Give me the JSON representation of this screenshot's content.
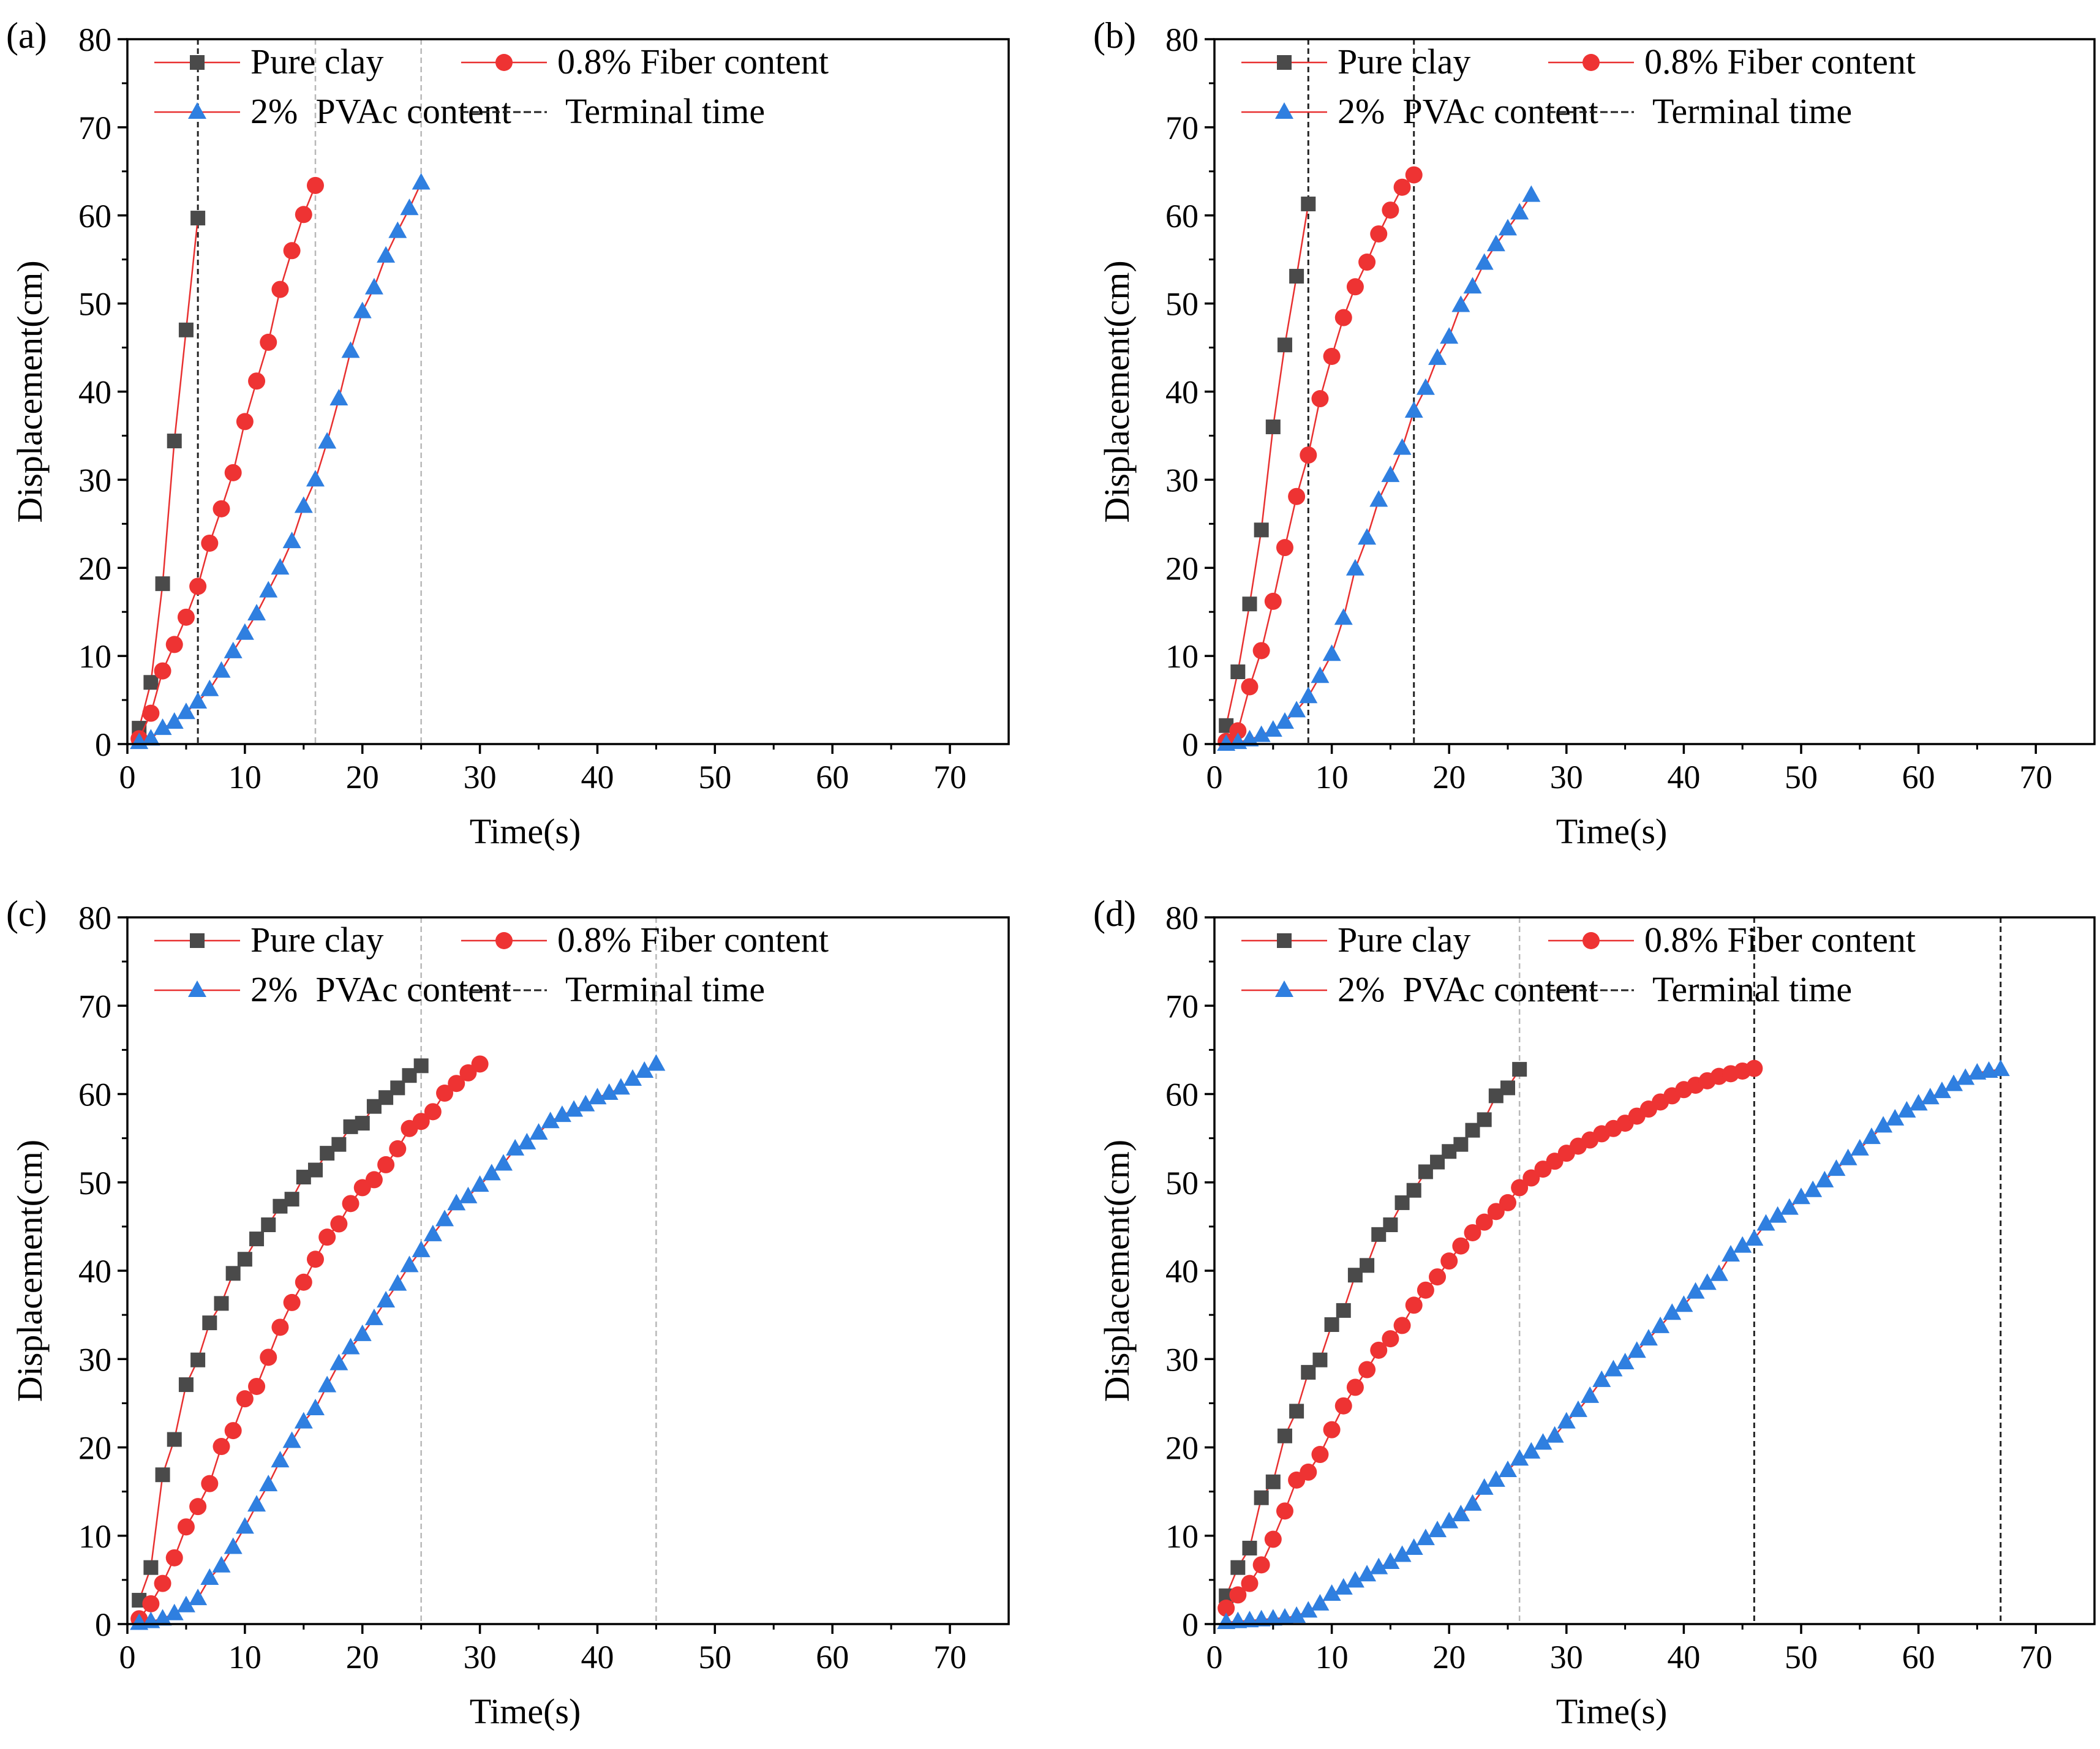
{
  "figure": {
    "colors": {
      "pure_clay": "#4a4a4a",
      "fiber": "#ee3333",
      "pvac": "#2f7fe0",
      "fit_line": "#e83030",
      "terminal_line": "#222222",
      "terminal_faint": "#b8b8b8"
    },
    "legend": {
      "pure_clay": "Pure clay",
      "fiber": "0.8% Fiber content",
      "pvac": "2%  PVAc content",
      "terminal": "Terminal time"
    }
  },
  "chart_data": [
    {
      "panel": "(a)",
      "type": "scatter",
      "xlabel": "Time(s)",
      "ylabel": "Displacement(cm)",
      "xlim": [
        0,
        75
      ],
      "ylim": [
        0,
        80
      ],
      "xticks": [
        0,
        10,
        20,
        30,
        40,
        50,
        60,
        70
      ],
      "yticks": [
        0,
        10,
        20,
        30,
        40,
        50,
        60,
        70,
        80
      ],
      "terminal_times": [
        6,
        16,
        25
      ],
      "terminal_style": [
        "dark",
        "faint",
        "faint"
      ],
      "series": [
        {
          "key": "pure_clay",
          "marker": "square",
          "x": [
            1,
            2,
            3,
            4,
            5,
            6
          ],
          "y": [
            1.8,
            7,
            18.2,
            34.4,
            47,
            59.7
          ]
        },
        {
          "key": "fiber",
          "marker": "circle",
          "x": [
            1,
            2,
            3,
            4,
            5,
            6,
            7,
            8,
            9,
            10,
            11,
            12,
            13,
            14,
            15,
            16
          ],
          "y": [
            0.6,
            3.5,
            8.3,
            11.3,
            14.4,
            17.9,
            22.8,
            26.7,
            30.8,
            36.6,
            41.2,
            45.6,
            51.6,
            56,
            60.1,
            63.4
          ]
        },
        {
          "key": "pvac",
          "marker": "triangle",
          "x": [
            1,
            2,
            3,
            4,
            5,
            6,
            7,
            8,
            9,
            10,
            11,
            12,
            13,
            14,
            15,
            16,
            17,
            18,
            19,
            20,
            21,
            22,
            23,
            24,
            25
          ],
          "y": [
            0.2,
            0.6,
            1.8,
            2.5,
            3.6,
            4.8,
            6.2,
            8.3,
            10.5,
            12.6,
            14.8,
            17.4,
            20,
            23,
            27,
            30,
            34.3,
            39.2,
            44.6,
            49.1,
            51.8,
            55.4,
            58.2,
            60.8,
            63.7
          ]
        }
      ]
    },
    {
      "panel": "(b)",
      "type": "scatter",
      "xlabel": "Time(s)",
      "ylabel": "Displacement(cm)",
      "xlim": [
        0,
        75
      ],
      "ylim": [
        0,
        80
      ],
      "xticks": [
        0,
        10,
        20,
        30,
        40,
        50,
        60,
        70
      ],
      "yticks": [
        0,
        10,
        20,
        30,
        40,
        50,
        60,
        70,
        80
      ],
      "terminal_times": [
        8,
        17
      ],
      "terminal_style": [
        "dark",
        "dark"
      ],
      "series": [
        {
          "key": "pure_clay",
          "marker": "square",
          "x": [
            1,
            2,
            3,
            4,
            5,
            6,
            7,
            8
          ],
          "y": [
            2.1,
            8.2,
            15.9,
            24.3,
            36,
            45.3,
            53.1,
            61.3
          ]
        },
        {
          "key": "fiber",
          "marker": "circle",
          "x": [
            1,
            2,
            3,
            4,
            5,
            6,
            7,
            8,
            9,
            10,
            11,
            12,
            13,
            14,
            15,
            16,
            17
          ],
          "y": [
            0.3,
            1.5,
            6.5,
            10.6,
            16.2,
            22.3,
            28.1,
            32.8,
            39.2,
            44,
            48.4,
            51.9,
            54.7,
            57.9,
            60.6,
            63.2,
            64.6
          ]
        },
        {
          "key": "pvac",
          "marker": "triangle",
          "x": [
            1,
            2,
            3,
            4,
            5,
            6,
            7,
            8,
            9,
            10,
            11,
            12,
            13,
            14,
            15,
            16,
            17,
            18,
            19,
            20,
            21,
            22,
            23,
            24,
            25,
            26,
            27
          ],
          "y": [
            0,
            0.2,
            0.5,
            1,
            1.6,
            2.5,
            3.8,
            5.4,
            7.7,
            10.2,
            14.3,
            19.9,
            23.4,
            27.7,
            30.5,
            33.6,
            37.8,
            40.4,
            43.8,
            46.2,
            49.8,
            51.9,
            54.6,
            56.7,
            58.5,
            60.3,
            62.3
          ]
        }
      ]
    },
    {
      "panel": "(c)",
      "type": "scatter",
      "xlabel": "Time(s)",
      "ylabel": "Displacement(cm)",
      "xlim": [
        0,
        75
      ],
      "ylim": [
        0,
        80
      ],
      "xticks": [
        0,
        10,
        20,
        30,
        40,
        50,
        60,
        70
      ],
      "yticks": [
        0,
        10,
        20,
        30,
        40,
        50,
        60,
        70,
        80
      ],
      "terminal_times": [
        25,
        45
      ],
      "terminal_style": [
        "faint",
        "faint"
      ],
      "series": [
        {
          "key": "pure_clay",
          "marker": "square",
          "x": [
            1,
            2,
            3,
            4,
            5,
            6,
            7,
            8,
            9,
            10,
            11,
            12,
            13,
            14,
            15,
            16,
            17,
            18,
            19,
            20,
            21,
            22,
            23,
            24,
            25
          ],
          "y": [
            2.7,
            6.4,
            16.9,
            20.9,
            27.1,
            29.9,
            34.1,
            36.3,
            39.7,
            41.3,
            43.6,
            45.2,
            47.3,
            48.1,
            50.6,
            51.4,
            53.3,
            54.3,
            56.3,
            56.7,
            58.6,
            59.6,
            60.7,
            62.1,
            63.2
          ]
        },
        {
          "key": "fiber",
          "marker": "circle",
          "x": [
            1,
            2,
            3,
            4,
            5,
            6,
            7,
            8,
            9,
            10,
            11,
            12,
            13,
            14,
            15,
            16,
            17,
            18,
            19,
            20,
            21,
            22,
            23,
            24,
            25,
            26,
            27,
            28,
            29,
            30
          ],
          "y": [
            0.6,
            2.3,
            4.6,
            7.5,
            11,
            13.3,
            15.9,
            20.1,
            21.9,
            25.5,
            26.9,
            30.2,
            33.6,
            36.4,
            38.7,
            41.3,
            43.8,
            45.3,
            47.6,
            49.4,
            50.3,
            52,
            53.8,
            56.1,
            56.9,
            58,
            60.1,
            61.2,
            62.4,
            63.4
          ]
        },
        {
          "key": "pvac",
          "marker": "triangle",
          "x": [
            1,
            2,
            3,
            4,
            5,
            6,
            7,
            8,
            9,
            10,
            11,
            12,
            13,
            14,
            15,
            16,
            17,
            18,
            19,
            20,
            21,
            22,
            23,
            24,
            25,
            26,
            27,
            28,
            29,
            30,
            31,
            32,
            33,
            34,
            35,
            36,
            37,
            38,
            39,
            40,
            41,
            42,
            43,
            44,
            45
          ],
          "y": [
            0.1,
            0.3,
            0.6,
            1.2,
            2.1,
            2.9,
            5.2,
            6.6,
            8.7,
            11,
            13.5,
            15.8,
            18.5,
            20.7,
            22.9,
            24.4,
            27,
            29.5,
            31.3,
            32.8,
            34.6,
            36.6,
            38.5,
            40.6,
            42.3,
            44.1,
            45.8,
            47.6,
            48.4,
            49.7,
            51,
            52.1,
            53.8,
            54.5,
            55.6,
            56.9,
            57.6,
            58.2,
            58.8,
            59.6,
            60.1,
            60.7,
            61.7,
            62.6,
            63.4
          ]
        }
      ]
    },
    {
      "panel": "(d)",
      "type": "scatter",
      "xlabel": "Time(s)",
      "ylabel": "Displacement(cm)",
      "xlim": [
        0,
        75
      ],
      "ylim": [
        0,
        80
      ],
      "xticks": [
        0,
        10,
        20,
        30,
        40,
        50,
        60,
        70
      ],
      "yticks": [
        0,
        10,
        20,
        30,
        40,
        50,
        60,
        70,
        80
      ],
      "terminal_times": [
        26,
        46,
        67
      ],
      "terminal_style": [
        "faint",
        "dark",
        "dark"
      ],
      "series": [
        {
          "key": "pure_clay",
          "marker": "square",
          "x": [
            1,
            2,
            3,
            4,
            5,
            6,
            7,
            8,
            9,
            10,
            11,
            12,
            13,
            14,
            15,
            16,
            17,
            18,
            19,
            20,
            21,
            22,
            23,
            24,
            25,
            26
          ],
          "y": [
            3.2,
            6.4,
            8.6,
            14.3,
            16.1,
            21.3,
            24.1,
            28.5,
            29.9,
            33.9,
            35.5,
            39.5,
            40.6,
            44.1,
            45.2,
            47.7,
            49.1,
            51.2,
            52.3,
            53.5,
            54.3,
            55.9,
            57.1,
            59.8,
            60.7,
            62.8
          ]
        },
        {
          "key": "fiber",
          "marker": "circle",
          "x": [
            1,
            2,
            3,
            4,
            5,
            6,
            7,
            8,
            9,
            10,
            11,
            12,
            13,
            14,
            15,
            16,
            17,
            18,
            19,
            20,
            21,
            22,
            23,
            24,
            25,
            26,
            27,
            28,
            29,
            30,
            31,
            32,
            33,
            34,
            35,
            36,
            37,
            38,
            39,
            40,
            41,
            42,
            43,
            44,
            45,
            46
          ],
          "y": [
            1.8,
            3.3,
            4.6,
            6.7,
            9.6,
            12.8,
            16.3,
            17.2,
            19.2,
            22,
            24.7,
            26.8,
            28.8,
            31,
            32.3,
            33.8,
            36.1,
            37.8,
            39.3,
            41.1,
            42.8,
            44.3,
            45.5,
            46.7,
            47.7,
            49.4,
            50.5,
            51.5,
            52.4,
            53.3,
            54.1,
            54.8,
            55.5,
            56.1,
            56.7,
            57.5,
            58.3,
            59.1,
            59.8,
            60.5,
            61,
            61.5,
            62,
            62.3,
            62.6,
            62.9
          ]
        },
        {
          "key": "pvac",
          "marker": "triangle",
          "x": [
            1,
            2,
            3,
            4,
            5,
            6,
            7,
            8,
            9,
            10,
            11,
            12,
            13,
            14,
            15,
            16,
            17,
            18,
            19,
            20,
            21,
            22,
            23,
            24,
            25,
            26,
            27,
            28,
            29,
            30,
            31,
            32,
            33,
            34,
            35,
            36,
            37,
            38,
            39,
            40,
            41,
            42,
            43,
            44,
            45,
            46,
            47,
            48,
            49,
            50,
            51,
            52,
            53,
            54,
            55,
            56,
            57,
            58,
            59,
            60,
            61,
            62,
            63,
            64,
            65,
            66,
            67
          ],
          "y": [
            0.2,
            0.3,
            0.4,
            0.5,
            0.6,
            0.7,
            0.9,
            1.5,
            2.3,
            3.4,
            4.1,
            4.9,
            5.6,
            6.4,
            7,
            7.8,
            8.6,
            9.7,
            10.6,
            11.6,
            12.4,
            13.6,
            15.4,
            16.3,
            17.4,
            18.7,
            19.5,
            20.5,
            21.3,
            22.9,
            24.2,
            25.8,
            27.6,
            28.8,
            29.6,
            30.9,
            32.3,
            33.7,
            35.2,
            36.1,
            37.6,
            38.6,
            39.6,
            41.8,
            42.8,
            43.6,
            45.3,
            46.2,
            47.1,
            48.3,
            49.1,
            50.2,
            51.5,
            52.7,
            53.8,
            55.1,
            56.4,
            57.2,
            58.1,
            58.9,
            59.6,
            60.3,
            61.1,
            61.8,
            62.4,
            62.6,
            62.8
          ]
        }
      ]
    }
  ]
}
